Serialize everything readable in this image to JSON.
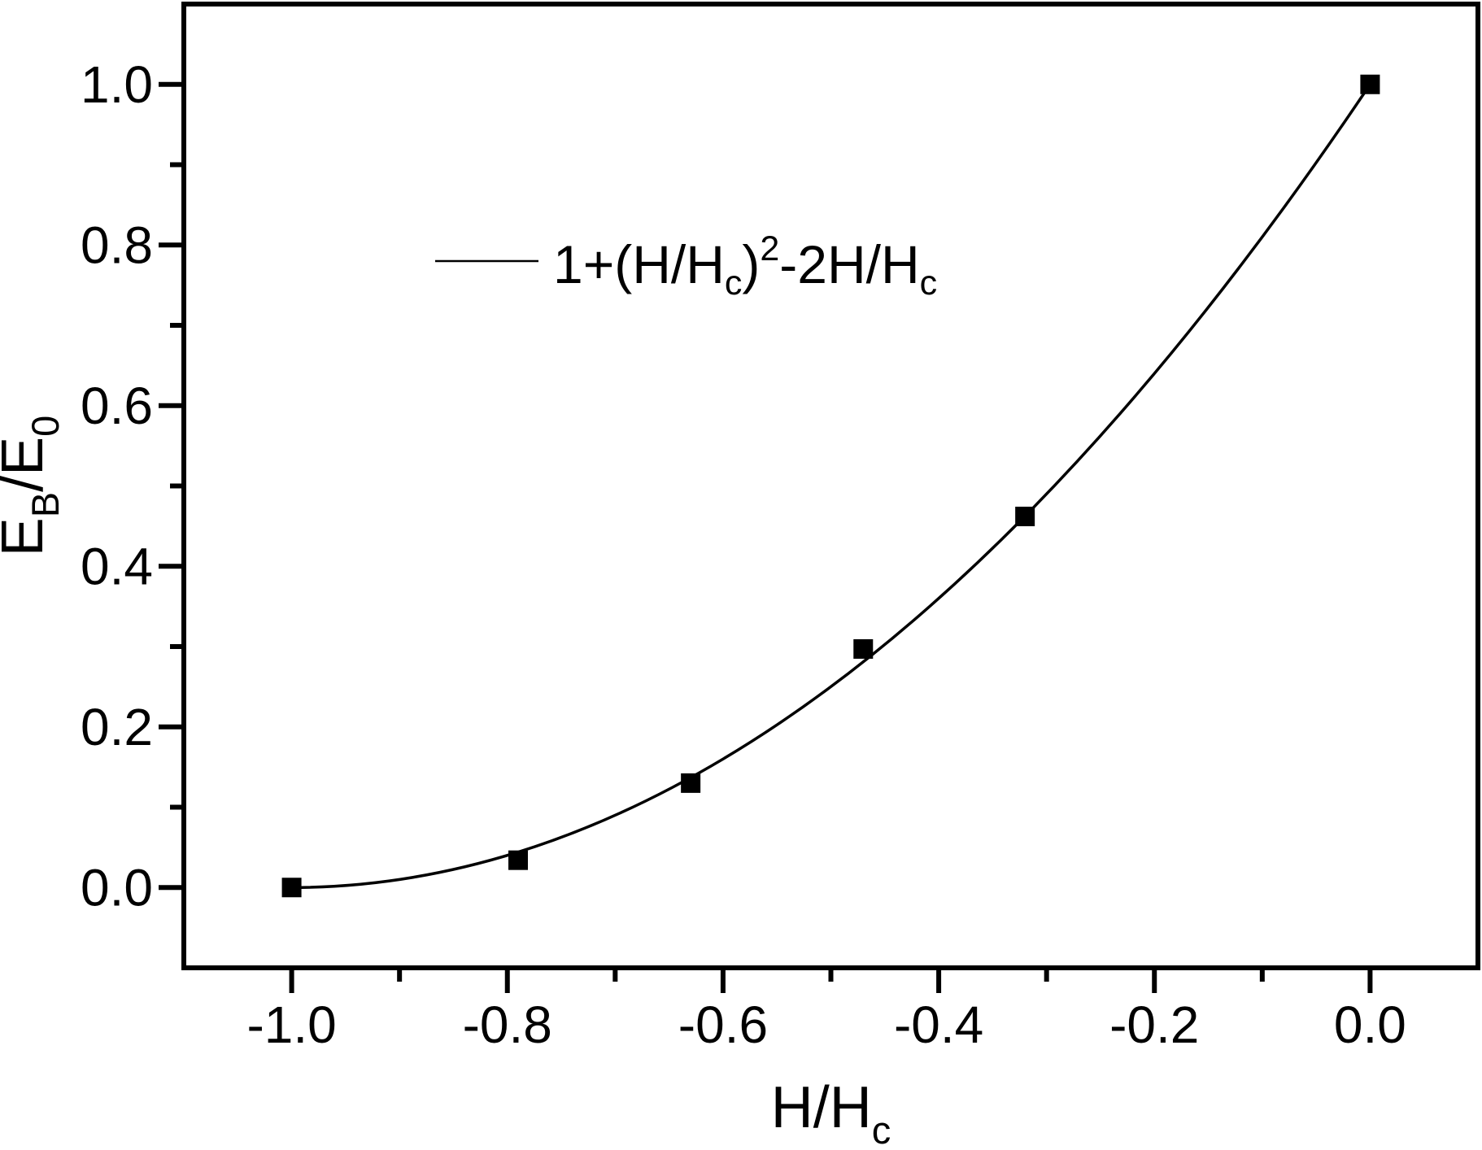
{
  "figure": {
    "background_color": "#ffffff",
    "foreground_color": "#000000"
  },
  "chart_data": {
    "type": "scatter",
    "title": "",
    "xlabel": "H/Hc",
    "ylabel": "EB/E0",
    "xlabel_segments": [
      {
        "t": "H/H"
      },
      {
        "t": "c",
        "style": "sub"
      }
    ],
    "ylabel_segments": [
      {
        "t": "E"
      },
      {
        "t": "B",
        "style": "sub"
      },
      {
        "t": "/E"
      },
      {
        "t": "0",
        "style": "sub"
      }
    ],
    "x_range": [
      -1.1,
      0.1
    ],
    "y_range": [
      -0.1,
      1.1
    ],
    "x_ticks": {
      "major": [
        -1.0,
        -0.8,
        -0.6,
        -0.4,
        -0.2,
        0.0
      ],
      "labels": [
        "-1.0",
        "-0.8",
        "-0.6",
        "-0.4",
        "-0.2",
        "0.0"
      ],
      "minor": [
        -0.9,
        -0.7,
        -0.5,
        -0.3,
        -0.1
      ]
    },
    "y_ticks": {
      "major": [
        0.0,
        0.2,
        0.4,
        0.6,
        0.8,
        1.0
      ],
      "labels": [
        "0.0",
        "0.2",
        "0.4",
        "0.6",
        "0.8",
        "1.0"
      ],
      "minor": [
        0.1,
        0.3,
        0.5,
        0.7,
        0.9
      ]
    },
    "grid": false,
    "series": [
      {
        "name": "model-curve",
        "type": "line",
        "color": "#000000",
        "legend_plain": "1+(H/Hc)2-2H/Hc",
        "legend_segments": [
          {
            "t": "1+(H/H"
          },
          {
            "t": "c",
            "style": "sub"
          },
          {
            "t": ")"
          },
          {
            "t": "2",
            "style": "sup"
          },
          {
            "t": "-2H/H"
          },
          {
            "t": "c",
            "style": "sub"
          }
        ],
        "bezier": {
          "p0": [
            -1.0,
            0.0
          ],
          "c": [
            -0.5,
            0.0
          ],
          "p1": [
            0.0,
            1.0
          ]
        }
      },
      {
        "name": "data-points",
        "type": "scatter",
        "marker": "filled-square",
        "color": "#000000",
        "points": [
          [
            -1.0,
            0.0
          ],
          [
            -0.79,
            0.034
          ],
          [
            -0.63,
            0.13
          ],
          [
            -0.47,
            0.297
          ],
          [
            -0.32,
            0.462
          ],
          [
            0.0,
            1.0
          ]
        ]
      }
    ],
    "legend": {
      "position": "inside-upper-left",
      "has_box": false
    }
  }
}
